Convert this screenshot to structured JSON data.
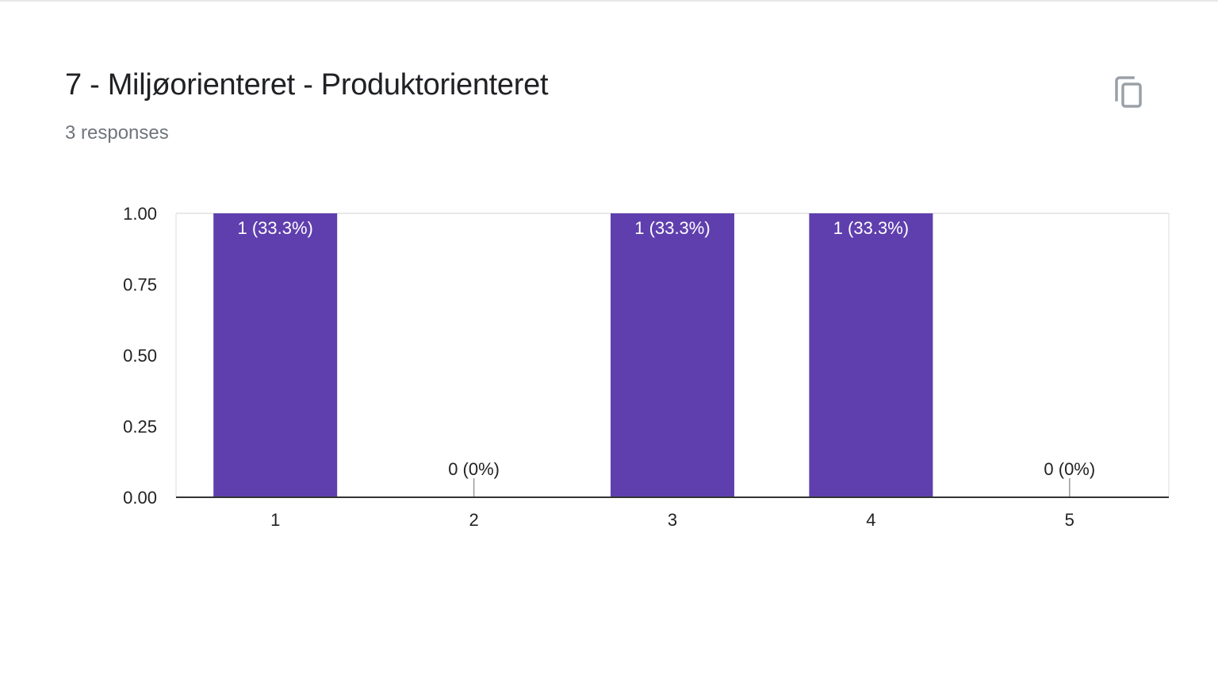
{
  "header": {
    "title": "7 - Miljøorienteret - Produktorienteret",
    "responses": "3 responses",
    "copy_icon": "copy-icon"
  },
  "colors": {
    "bar": "#5f3fae",
    "grid": "#e8e8e8",
    "axis": "#333333"
  },
  "chart_data": {
    "type": "bar",
    "categories": [
      "1",
      "2",
      "3",
      "4",
      "5"
    ],
    "values": [
      1,
      0,
      1,
      1,
      0
    ],
    "data_labels": [
      "1 (33.3%)",
      "0 (0%)",
      "1 (33.3%)",
      "1 (33.3%)",
      "0 (0%)"
    ],
    "ylim": [
      0,
      1
    ],
    "yticks": [
      "0.00",
      "0.25",
      "0.50",
      "0.75",
      "1.00"
    ],
    "ytick_values": [
      0,
      0.25,
      0.5,
      0.75,
      1
    ],
    "grid": true,
    "legend": "none"
  }
}
